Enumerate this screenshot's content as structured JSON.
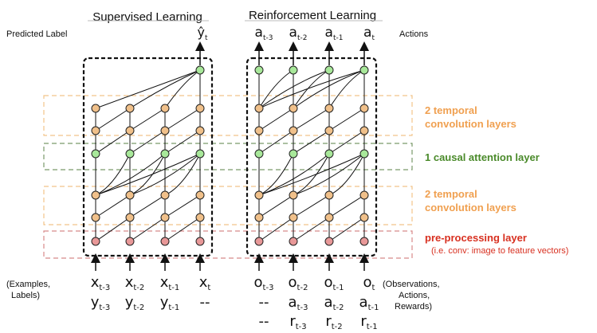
{
  "titles": {
    "supervised": "Supervised Learning",
    "reinforcement": "Reinforcement Learning"
  },
  "left_labels": {
    "predicted_label": "Predicted Label",
    "inputs_line1": "(Examples,",
    "inputs_line2": "Labels)"
  },
  "right_labels": {
    "actions": "Actions",
    "inputs_line1": "(Observations,",
    "inputs_line2": "Actions,",
    "inputs_line3": "Rewards)"
  },
  "layers": {
    "temporal_top_1": "2 temporal",
    "temporal_top_2": "convolution layers",
    "causal_attention": "1 causal attention layer",
    "temporal_bottom_1": "2 temporal",
    "temporal_bottom_2": "convolution layers",
    "preprocessing": "pre-processing layer",
    "preprocessing_note": "(i.e. conv: image to feature vectors)"
  },
  "supervised_output": {
    "base": "ŷ",
    "sub": "t"
  },
  "rl_outputs": [
    {
      "base": "a",
      "sub": "t-3"
    },
    {
      "base": "a",
      "sub": "t-2"
    },
    {
      "base": "a",
      "sub": "t-1"
    },
    {
      "base": "a",
      "sub": "t"
    }
  ],
  "supervised_inputs_row1": [
    {
      "base": "x",
      "sub": "t-3"
    },
    {
      "base": "x",
      "sub": "t-2"
    },
    {
      "base": "x",
      "sub": "t-1"
    },
    {
      "base": "x",
      "sub": "t"
    }
  ],
  "supervised_inputs_row2": [
    {
      "base": "y",
      "sub": "t-3"
    },
    {
      "base": "y",
      "sub": "t-2"
    },
    {
      "base": "y",
      "sub": "t-1"
    },
    {
      "base": "--",
      "sub": ""
    }
  ],
  "rl_inputs_row1": [
    {
      "base": "o",
      "sub": "t-3"
    },
    {
      "base": "o",
      "sub": "t-2"
    },
    {
      "base": "o",
      "sub": "t-1"
    },
    {
      "base": "o",
      "sub": "t"
    }
  ],
  "rl_inputs_row2": [
    {
      "base": "--",
      "sub": ""
    },
    {
      "base": "a",
      "sub": "t-3"
    },
    {
      "base": "a",
      "sub": "t-2"
    },
    {
      "base": "a",
      "sub": "t-1"
    }
  ],
  "rl_inputs_row3": [
    {
      "base": "--",
      "sub": ""
    },
    {
      "base": "r",
      "sub": "t-3"
    },
    {
      "base": "r",
      "sub": "t-2"
    },
    {
      "base": "r",
      "sub": "t-1"
    }
  ],
  "colors": {
    "orange_node": "#f0c08a",
    "green_node": "#a8e89a",
    "red_node": "#e89898",
    "orange_band": "#f2c48a",
    "green_band": "#7a9a6a",
    "red_band": "#d88a8a",
    "orange_text": "#f0a050",
    "green_text": "#4a8a2a",
    "red_text": "#d83020"
  }
}
